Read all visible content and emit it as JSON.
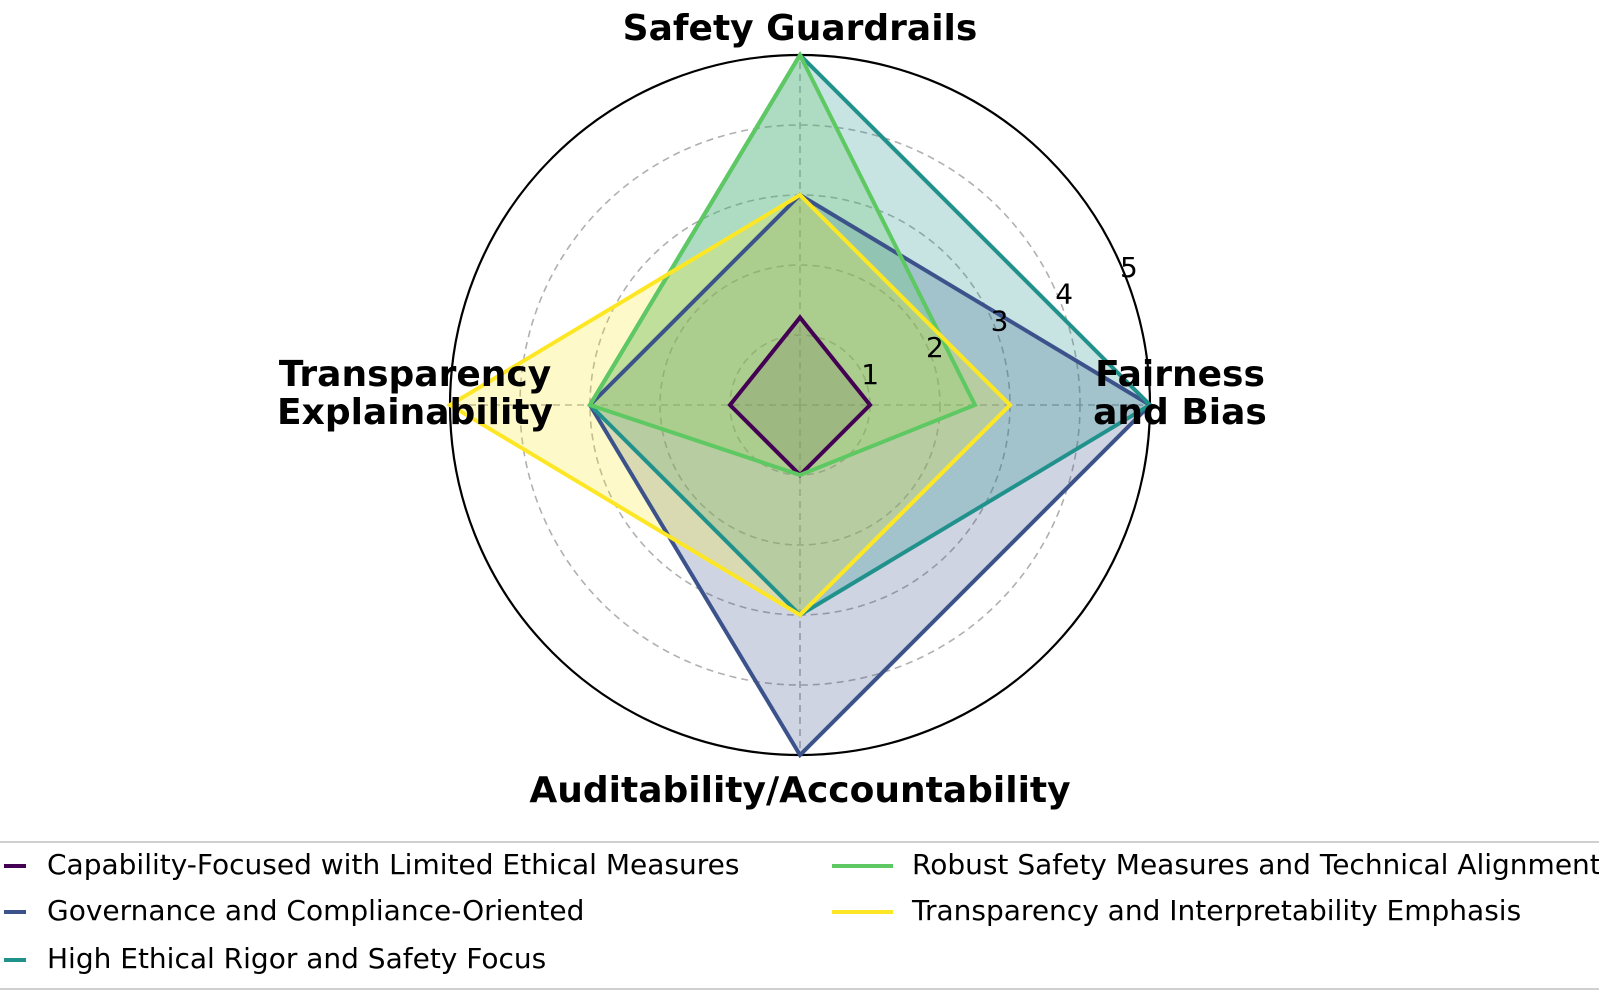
{
  "chart_data": {
    "type": "radar",
    "axes": [
      "Safety Guardrails",
      "Fairness and Bias",
      "Auditability/Accountability",
      "Transparency Explainability"
    ],
    "axis_label_lines": [
      [
        "Safety Guardrails"
      ],
      [
        "Fairness",
        "and Bias"
      ],
      [
        "Auditability/Accountability"
      ],
      [
        "Transparency",
        "Explainability"
      ]
    ],
    "rmax": 5,
    "ticks": [
      "1",
      "2",
      "3",
      "4",
      "5"
    ],
    "grid": true,
    "legend_position": "bottom",
    "series": [
      {
        "name": "Capability-Focused with Limited Ethical Measures",
        "color": "#440154",
        "values": [
          1.25,
          1,
          1,
          1
        ]
      },
      {
        "name": "Governance and Compliance-Oriented",
        "color": "#3b528b",
        "values": [
          3,
          5,
          5,
          3
        ]
      },
      {
        "name": "High Ethical Rigor and Safety Focus",
        "color": "#21918c",
        "values": [
          5,
          5,
          3,
          3
        ]
      },
      {
        "name": "Robust Safety Measures and Technical Alignment",
        "color": "#5ec962",
        "values": [
          5,
          2.5,
          1,
          3
        ]
      },
      {
        "name": "Transparency and Interpretability Emphasis",
        "color": "#fde725",
        "values": [
          3,
          3,
          3,
          5
        ]
      }
    ]
  }
}
